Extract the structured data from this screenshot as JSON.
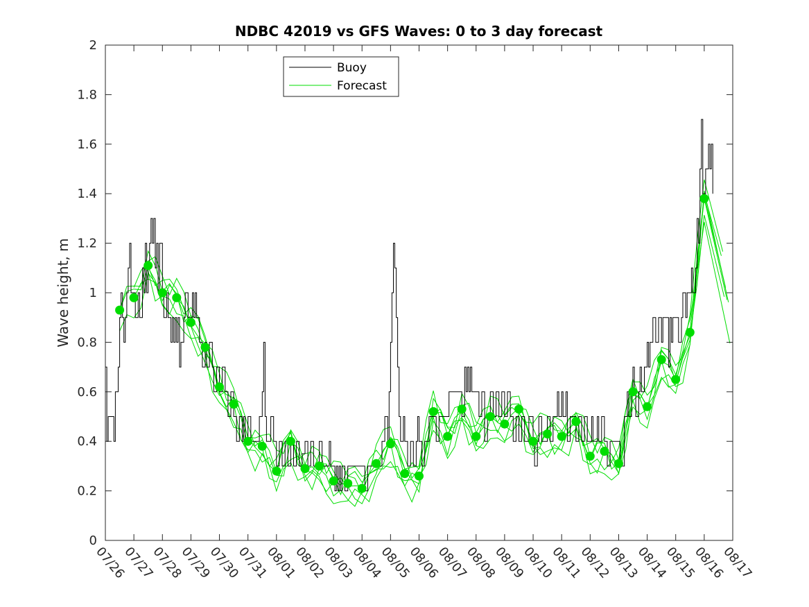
{
  "chart_data": {
    "type": "line",
    "title": "NDBC 42019 vs GFS Waves: 0 to 3 day forecast",
    "xlabel": "",
    "ylabel": "Wave height, m",
    "x_unit": "days since 07/26",
    "xlim": [
      0,
      22
    ],
    "ylim": [
      0,
      2
    ],
    "yticks": [
      0,
      0.2,
      0.4,
      0.6,
      0.8,
      1,
      1.2,
      1.4,
      1.6,
      1.8,
      2
    ],
    "ytick_labels": [
      "0",
      "0.2",
      "0.4",
      "0.6",
      "0.8",
      "1",
      "1.2",
      "1.4",
      "1.6",
      "1.8",
      "2"
    ],
    "xtick_labels": [
      "07/26",
      "07/27",
      "07/28",
      "07/29",
      "07/30",
      "07/31",
      "08/01",
      "08/02",
      "08/03",
      "08/04",
      "08/05",
      "08/06",
      "08/07",
      "08/08",
      "08/09",
      "08/10",
      "08/11",
      "08/12",
      "08/13",
      "08/14",
      "08/15",
      "08/16",
      "08/17"
    ],
    "legend": {
      "position": "top-left",
      "entries": [
        {
          "label": "Buoy",
          "color": "#000000"
        },
        {
          "label": "Forecast",
          "color": "#00dd00"
        }
      ]
    },
    "series": [
      {
        "name": "Buoy",
        "color": "#000000",
        "points": [
          [
            0,
            0.7
          ],
          [
            0.05,
            0.4
          ],
          [
            0.1,
            0.5
          ],
          [
            0.2,
            0.5
          ],
          [
            0.3,
            0.4
          ],
          [
            0.35,
            0.6
          ],
          [
            0.45,
            0.7
          ],
          [
            0.5,
            0.9
          ],
          [
            0.55,
            1.0
          ],
          [
            0.6,
            0.9
          ],
          [
            0.65,
            0.8
          ],
          [
            0.7,
            0.9
          ],
          [
            0.75,
            1.0
          ],
          [
            0.8,
            1.1
          ],
          [
            0.85,
            1.2
          ],
          [
            0.9,
            1.0
          ],
          [
            1.0,
            1.0
          ],
          [
            1.05,
            0.9
          ],
          [
            1.15,
            1.0
          ],
          [
            1.2,
            0.9
          ],
          [
            1.3,
            1.1
          ],
          [
            1.35,
            1.0
          ],
          [
            1.4,
            1.2
          ],
          [
            1.45,
            1.0
          ],
          [
            1.5,
            1.1
          ],
          [
            1.55,
            1.2
          ],
          [
            1.6,
            1.3
          ],
          [
            1.65,
            1.2
          ],
          [
            1.7,
            1.3
          ],
          [
            1.75,
            1.1
          ],
          [
            1.8,
            1.2
          ],
          [
            1.85,
            1.0
          ],
          [
            1.9,
            1.2
          ],
          [
            2.0,
            1.0
          ],
          [
            2.05,
            0.9
          ],
          [
            2.15,
            1.0
          ],
          [
            2.2,
            0.9
          ],
          [
            2.3,
            0.8
          ],
          [
            2.35,
            0.9
          ],
          [
            2.4,
            0.8
          ],
          [
            2.45,
            0.9
          ],
          [
            2.5,
            0.8
          ],
          [
            2.55,
            0.9
          ],
          [
            2.6,
            0.7
          ],
          [
            2.65,
            0.8
          ],
          [
            2.75,
            0.9
          ],
          [
            2.8,
            1.0
          ],
          [
            2.9,
            0.9
          ],
          [
            3.0,
            0.9
          ],
          [
            3.05,
            1.0
          ],
          [
            3.1,
            0.9
          ],
          [
            3.15,
            1.0
          ],
          [
            3.2,
            0.9
          ],
          [
            3.3,
            0.8
          ],
          [
            3.4,
            0.7
          ],
          [
            3.5,
            0.8
          ],
          [
            3.55,
            0.7
          ],
          [
            3.65,
            0.8
          ],
          [
            3.75,
            0.7
          ],
          [
            3.8,
            0.6
          ],
          [
            3.9,
            0.7
          ],
          [
            4.0,
            0.6
          ],
          [
            4.1,
            0.7
          ],
          [
            4.2,
            0.6
          ],
          [
            4.3,
            0.5
          ],
          [
            4.4,
            0.6
          ],
          [
            4.5,
            0.5
          ],
          [
            4.6,
            0.4
          ],
          [
            4.7,
            0.5
          ],
          [
            4.8,
            0.4
          ],
          [
            4.85,
            0.5
          ],
          [
            4.9,
            0.4
          ],
          [
            5.0,
            0.5
          ],
          [
            5.1,
            0.4
          ],
          [
            5.3,
            0.4
          ],
          [
            5.4,
            0.5
          ],
          [
            5.5,
            0.6
          ],
          [
            5.55,
            0.8
          ],
          [
            5.6,
            0.5
          ],
          [
            5.65,
            0.4
          ],
          [
            5.8,
            0.5
          ],
          [
            5.9,
            0.4
          ],
          [
            6.0,
            0.3
          ],
          [
            6.1,
            0.4
          ],
          [
            6.2,
            0.3
          ],
          [
            6.3,
            0.4
          ],
          [
            6.4,
            0.3
          ],
          [
            6.5,
            0.4
          ],
          [
            6.6,
            0.3
          ],
          [
            6.7,
            0.4
          ],
          [
            6.8,
            0.3
          ],
          [
            6.9,
            0.35
          ],
          [
            7.0,
            0.4
          ],
          [
            7.1,
            0.3
          ],
          [
            7.2,
            0.4
          ],
          [
            7.3,
            0.3
          ],
          [
            7.5,
            0.4
          ],
          [
            7.6,
            0.3
          ],
          [
            7.8,
            0.3
          ],
          [
            7.85,
            0.4
          ],
          [
            7.9,
            0.3
          ],
          [
            8.0,
            0.3
          ],
          [
            8.05,
            0.2
          ],
          [
            8.1,
            0.3
          ],
          [
            8.15,
            0.2
          ],
          [
            8.2,
            0.3
          ],
          [
            8.25,
            0.2
          ],
          [
            8.3,
            0.3
          ],
          [
            8.4,
            0.2
          ],
          [
            8.5,
            0.3
          ],
          [
            9.0,
            0.3
          ],
          [
            9.1,
            0.2
          ],
          [
            9.2,
            0.3
          ],
          [
            9.6,
            0.3
          ],
          [
            9.7,
            0.4
          ],
          [
            9.8,
            0.5
          ],
          [
            9.9,
            0.4
          ],
          [
            9.95,
            0.6
          ],
          [
            10.0,
            0.8
          ],
          [
            10.05,
            1.0
          ],
          [
            10.1,
            1.2
          ],
          [
            10.15,
            1.1
          ],
          [
            10.2,
            0.9
          ],
          [
            10.25,
            0.7
          ],
          [
            10.3,
            0.5
          ],
          [
            10.35,
            0.4
          ],
          [
            10.45,
            0.5
          ],
          [
            10.5,
            0.4
          ],
          [
            10.6,
            0.3
          ],
          [
            10.7,
            0.4
          ],
          [
            10.8,
            0.3
          ],
          [
            10.9,
            0.4
          ],
          [
            10.95,
            0.5
          ],
          [
            11.0,
            0.4
          ],
          [
            11.1,
            0.3
          ],
          [
            11.2,
            0.4
          ],
          [
            11.3,
            0.4
          ],
          [
            11.35,
            0.5
          ],
          [
            11.5,
            0.5
          ],
          [
            11.6,
            0.4
          ],
          [
            11.7,
            0.5
          ],
          [
            12.0,
            0.5
          ],
          [
            12.05,
            0.6
          ],
          [
            12.4,
            0.6
          ],
          [
            12.5,
            0.5
          ],
          [
            12.6,
            0.7
          ],
          [
            12.65,
            0.6
          ],
          [
            12.7,
            0.7
          ],
          [
            12.75,
            0.6
          ],
          [
            12.8,
            0.7
          ],
          [
            12.85,
            0.6
          ],
          [
            13.0,
            0.6
          ],
          [
            13.1,
            0.5
          ],
          [
            13.2,
            0.6
          ],
          [
            13.3,
            0.4
          ],
          [
            13.4,
            0.5
          ],
          [
            13.5,
            0.6
          ],
          [
            13.6,
            0.5
          ],
          [
            13.7,
            0.6
          ],
          [
            13.8,
            0.5
          ],
          [
            13.9,
            0.6
          ],
          [
            14.0,
            0.5
          ],
          [
            14.1,
            0.6
          ],
          [
            14.2,
            0.5
          ],
          [
            14.3,
            0.4
          ],
          [
            14.4,
            0.5
          ],
          [
            14.5,
            0.4
          ],
          [
            14.6,
            0.5
          ],
          [
            14.7,
            0.4
          ],
          [
            14.8,
            0.4
          ],
          [
            14.85,
            0.5
          ],
          [
            15.0,
            0.4
          ],
          [
            15.05,
            0.3
          ],
          [
            15.15,
            0.4
          ],
          [
            15.2,
            0.5
          ],
          [
            15.3,
            0.4
          ],
          [
            15.5,
            0.5
          ],
          [
            15.6,
            0.4
          ],
          [
            15.7,
            0.5
          ],
          [
            15.8,
            0.5
          ],
          [
            15.85,
            0.6
          ],
          [
            15.9,
            0.5
          ],
          [
            16.0,
            0.6
          ],
          [
            16.05,
            0.5
          ],
          [
            16.15,
            0.6
          ],
          [
            16.2,
            0.4
          ],
          [
            16.3,
            0.5
          ],
          [
            16.4,
            0.5
          ],
          [
            16.5,
            0.4
          ],
          [
            16.6,
            0.5
          ],
          [
            16.7,
            0.4
          ],
          [
            16.8,
            0.5
          ],
          [
            16.9,
            0.4
          ],
          [
            17.0,
            0.4
          ],
          [
            17.05,
            0.5
          ],
          [
            17.1,
            0.4
          ],
          [
            17.25,
            0.5
          ],
          [
            17.3,
            0.4
          ],
          [
            17.4,
            0.5
          ],
          [
            17.5,
            0.4
          ],
          [
            17.6,
            0.3
          ],
          [
            17.7,
            0.4
          ],
          [
            18.0,
            0.4
          ],
          [
            18.05,
            0.3
          ],
          [
            18.15,
            0.3
          ],
          [
            18.2,
            0.5
          ],
          [
            18.3,
            0.6
          ],
          [
            18.35,
            0.5
          ],
          [
            18.45,
            0.6
          ],
          [
            18.5,
            0.7
          ],
          [
            18.55,
            0.6
          ],
          [
            18.6,
            0.5
          ],
          [
            18.7,
            0.6
          ],
          [
            18.75,
            0.7
          ],
          [
            18.8,
            0.6
          ],
          [
            18.9,
            0.7
          ],
          [
            19.0,
            0.8
          ],
          [
            19.05,
            0.7
          ],
          [
            19.1,
            0.8
          ],
          [
            19.2,
            0.9
          ],
          [
            19.3,
            0.8
          ],
          [
            19.4,
            0.9
          ],
          [
            19.5,
            0.8
          ],
          [
            19.55,
            0.9
          ],
          [
            19.7,
            0.9
          ],
          [
            19.75,
            0.7
          ],
          [
            19.8,
            0.9
          ],
          [
            19.85,
            0.8
          ],
          [
            19.9,
            0.9
          ],
          [
            20.0,
            0.9
          ],
          [
            20.1,
            0.8
          ],
          [
            20.2,
            0.9
          ],
          [
            20.25,
            1.0
          ],
          [
            20.35,
            0.9
          ],
          [
            20.4,
            1.0
          ],
          [
            20.5,
            1.0
          ],
          [
            20.55,
            1.1
          ],
          [
            20.6,
            1.0
          ],
          [
            20.7,
            1.1
          ],
          [
            20.75,
            1.3
          ],
          [
            20.8,
            1.2
          ],
          [
            20.85,
            1.5
          ],
          [
            20.9,
            1.7
          ],
          [
            20.95,
            1.4
          ],
          [
            21.0,
            1.4
          ],
          [
            21.05,
            1.5
          ],
          [
            21.1,
            1.5
          ],
          [
            21.15,
            1.6
          ],
          [
            21.2,
            1.5
          ],
          [
            21.25,
            1.6
          ],
          [
            21.3,
            1.4
          ]
        ]
      },
      {
        "name": "Forecast",
        "color": "#00dd00",
        "markers": [
          [
            0.5,
            0.93
          ],
          [
            1.0,
            0.98
          ],
          [
            1.5,
            1.11
          ],
          [
            2.0,
            1.0
          ],
          [
            2.5,
            0.98
          ],
          [
            3.0,
            0.88
          ],
          [
            3.5,
            0.78
          ],
          [
            4.0,
            0.62
          ],
          [
            4.5,
            0.55
          ],
          [
            5.0,
            0.4
          ],
          [
            5.5,
            0.38
          ],
          [
            6.0,
            0.28
          ],
          [
            6.5,
            0.4
          ],
          [
            7.0,
            0.29
          ],
          [
            7.5,
            0.3
          ],
          [
            8.0,
            0.24
          ],
          [
            8.5,
            0.23
          ],
          [
            9.0,
            0.21
          ],
          [
            9.5,
            0.31
          ],
          [
            10.0,
            0.39
          ],
          [
            10.5,
            0.27
          ],
          [
            11.0,
            0.26
          ],
          [
            11.5,
            0.52
          ],
          [
            12.0,
            0.42
          ],
          [
            12.5,
            0.53
          ],
          [
            13.0,
            0.42
          ],
          [
            13.5,
            0.5
          ],
          [
            14.0,
            0.47
          ],
          [
            14.5,
            0.53
          ],
          [
            15.0,
            0.4
          ],
          [
            15.5,
            0.43
          ],
          [
            16.0,
            0.42
          ],
          [
            16.5,
            0.48
          ],
          [
            17.0,
            0.34
          ],
          [
            17.5,
            0.36
          ],
          [
            18.0,
            0.31
          ],
          [
            18.5,
            0.6
          ],
          [
            19.0,
            0.54
          ],
          [
            19.5,
            0.73
          ],
          [
            20.0,
            0.65
          ],
          [
            20.5,
            0.84
          ],
          [
            21.0,
            1.38
          ]
        ],
        "ensemble_offsets": [
          0.0,
          0.05,
          -0.04,
          0.03,
          -0.03,
          0.02,
          -0.06
        ]
      }
    ]
  }
}
